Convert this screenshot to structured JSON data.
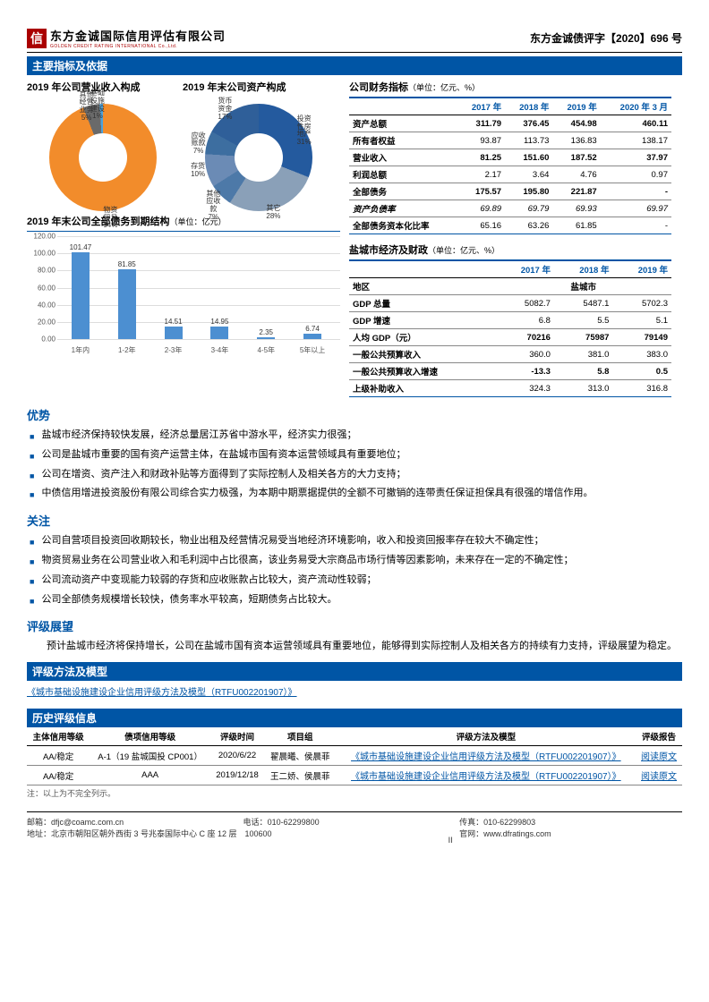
{
  "header": {
    "company_cn": "东方金诚国际信用评估有限公司",
    "company_en": "GOLDEN CREDIT RATING INTERNATIONAL Co.,Ltd.",
    "logo_letter": "信",
    "doc_number": "东方金诚债评字【2020】696 号"
  },
  "section_main_title": "主要指标及依据",
  "pie1": {
    "title": "2019 年公司营业收入构成",
    "slices": [
      {
        "label": "物资\\n贸易",
        "pct": 94,
        "color": "#f28c2b"
      },
      {
        "label": "其他\\n经营\\n业务",
        "pct": 5,
        "color": "#6a6a6a"
      },
      {
        "label": "基础\\n设施\\n建设",
        "pct": 1,
        "color": "#4aa3df"
      }
    ]
  },
  "pie2": {
    "title": "2019 年末公司资产构成",
    "slices": [
      {
        "label": "投资\\n性房\\n地产",
        "pct": 31,
        "color": "#245a9e"
      },
      {
        "label": "其它",
        "pct": 28,
        "color": "#8aa0b8"
      },
      {
        "label": "其他\\n应收\\n款",
        "pct": 7,
        "color": "#4d79a8"
      },
      {
        "label": "存货",
        "pct": 10,
        "color": "#6b8bb5"
      },
      {
        "label": "应收\\n账款",
        "pct": 7,
        "color": "#3d6ea0"
      },
      {
        "label": "货币\\n资金",
        "pct": 17,
        "color": "#2f5f99"
      }
    ]
  },
  "fin_table": {
    "title": "公司财务指标",
    "units": "（单位：亿元、%）",
    "headers": [
      "",
      "2017 年",
      "2018 年",
      "2019 年",
      "2020 年 3 月"
    ],
    "rows": [
      {
        "label": "资产总额",
        "vals": [
          "311.79",
          "376.45",
          "454.98",
          "460.11"
        ],
        "bold": true
      },
      {
        "label": "所有者权益",
        "vals": [
          "93.87",
          "113.73",
          "136.83",
          "138.17"
        ],
        "bold": false
      },
      {
        "label": "营业收入",
        "vals": [
          "81.25",
          "151.60",
          "187.52",
          "37.97"
        ],
        "bold": true
      },
      {
        "label": "利润总额",
        "vals": [
          "2.17",
          "3.64",
          "4.76",
          "0.97"
        ],
        "bold": false
      },
      {
        "label": "全部债务",
        "vals": [
          "175.57",
          "195.80",
          "221.87",
          "-"
        ],
        "bold": true
      },
      {
        "label": "资产负债率",
        "vals": [
          "69.89",
          "69.79",
          "69.93",
          "69.97"
        ],
        "italic": true
      },
      {
        "label": "全部债务资本化比率",
        "vals": [
          "65.16",
          "63.26",
          "61.85",
          "-"
        ],
        "bold": false,
        "last": true
      }
    ]
  },
  "bar_chart": {
    "title": "2019 年末公司全部债务到期结构",
    "units": "（单位：亿元）",
    "ymax": 120,
    "ystep": 20,
    "color": "#4c8fd1",
    "bars": [
      {
        "x": "1年内",
        "v": 101.47
      },
      {
        "x": "1-2年",
        "v": 81.85
      },
      {
        "x": "2-3年",
        "v": 14.51
      },
      {
        "x": "3-4年",
        "v": 14.95
      },
      {
        "x": "4-5年",
        "v": 2.35
      },
      {
        "x": "5年以上",
        "v": 6.74
      }
    ]
  },
  "econ_table": {
    "title": "盐城市经济及财政",
    "units": "（单位：亿元、%）",
    "headers": [
      "",
      "2017 年",
      "2018 年",
      "2019 年"
    ],
    "region_label": "地区",
    "region_val": "盐城市",
    "rows": [
      {
        "label": "GDP 总量",
        "vals": [
          "5082.7",
          "5487.1",
          "5702.3"
        ]
      },
      {
        "label": "GDP 增速",
        "vals": [
          "6.8",
          "5.5",
          "5.1"
        ]
      },
      {
        "label": "人均 GDP（元）",
        "vals": [
          "70216",
          "75987",
          "79149"
        ],
        "bold": true
      },
      {
        "label": "一般公共预算收入",
        "vals": [
          "360.0",
          "381.0",
          "383.0"
        ]
      },
      {
        "label": "一般公共预算收入增速",
        "vals": [
          "-13.3",
          "5.8",
          "0.5"
        ],
        "bold": true
      },
      {
        "label": "上级补助收入",
        "vals": [
          "324.3",
          "313.0",
          "316.8"
        ],
        "last": true
      }
    ]
  },
  "advantages": {
    "title": "优势",
    "items": [
      "盐城市经济保持较快发展，经济总量居江苏省中游水平，经济实力很强；",
      "公司是盐城市重要的国有资产运营主体，在盐城市国有资本运营领域具有重要地位；",
      "公司在增资、资产注入和财政补贴等方面得到了实际控制人及相关各方的大力支持；",
      "中债信用增进投资股份有限公司综合实力极强，为本期中期票据提供的全额不可撤销的连带责任保证担保具有很强的增信作用。"
    ]
  },
  "concerns": {
    "title": "关注",
    "items": [
      "公司自营项目投资回收期较长，物业出租及经营情况易受当地经济环境影响，收入和投资回报率存在较大不确定性；",
      "物资贸易业务在公司营业收入和毛利润中占比很高，该业务易受大宗商品市场行情等因素影响，未来存在一定的不确定性；",
      "公司流动资产中变现能力较弱的存货和应收账款占比较大，资产流动性较弱；",
      "公司全部债务规模增长较快，债务率水平较高，短期债务占比较大。"
    ]
  },
  "outlook": {
    "title": "评级展望",
    "text": "预计盐城市经济将保持增长，公司在盐城市国有资本运营领域具有重要地位，能够得到实际控制人及相关各方的持续有力支持，评级展望为稳定。"
  },
  "method": {
    "title": "评级方法及模型",
    "link": "《城市基础设施建设企业信用评级方法及模型（RTFU002201907）》"
  },
  "history": {
    "title": "历史评级信息",
    "headers": [
      "主体信用等级",
      "债项信用等级",
      "评级时间",
      "项目组",
      "评级方法及模型",
      "评级报告"
    ],
    "rows": [
      {
        "vals": [
          "AA/稳定",
          "A-1（19 盐城国投 CP001）",
          "2020/6/22",
          "翟晨曦、侯晨菲",
          "《城市基础设施建设企业信用评级方法及模型（RTFU002201907）》",
          "阅读原文"
        ]
      },
      {
        "vals": [
          "AA/稳定",
          "AAA",
          "2019/12/18",
          "王二娇、侯晨菲",
          "《城市基础设施建设企业信用评级方法及模型（RTFU002201907）》",
          "阅读原文"
        ]
      }
    ],
    "note": "注：以上为不完全列示。"
  },
  "footer": {
    "email_lbl": "邮箱：",
    "email": "dfjc@coamc.com.cn",
    "tel_lbl": "电话：",
    "tel": "010-62299800",
    "fax_lbl": "传真：",
    "fax": "010-62299803",
    "addr_lbl": "地址：",
    "addr": "北京市朝阳区朝外西街 3 号兆泰国际中心 C 座 12 层　100600",
    "web_lbl": "官网：",
    "web": "www.dfratings.com",
    "page_no": "II"
  }
}
